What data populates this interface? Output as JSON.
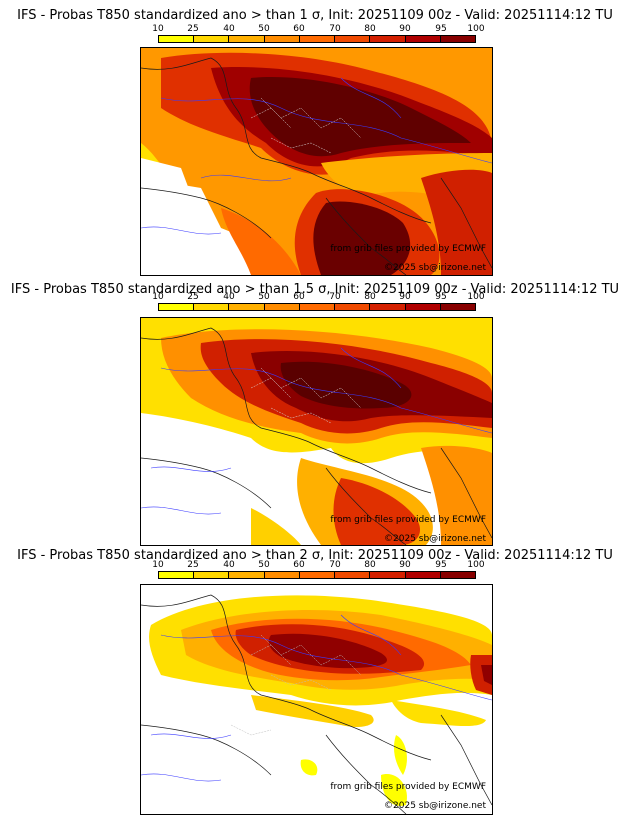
{
  "colorscale": {
    "ticks": [
      "10",
      "25",
      "40",
      "50",
      "60",
      "70",
      "80",
      "90",
      "95",
      "100"
    ],
    "colors": [
      "#ffff00",
      "#ffd800",
      "#ffb000",
      "#ff8c00",
      "#ff6a00",
      "#f04a00",
      "#d42000",
      "#b00000",
      "#880000",
      "#5a0000"
    ]
  },
  "panels": [
    {
      "title": "IFS - Probas T850  standardized ano > than 1 σ, Init: 20251109 00z - Valid: 20251114:12 TU",
      "credit_source": "from grib files provided by ECMWF",
      "credit_copyright": "©2025 sb@irizone.net"
    },
    {
      "title": "IFS - Probas T850  standardized ano > than 1.5 σ, Init: 20251109 00z - Valid: 20251114:12 TU",
      "credit_source": "from grib files provided by ECMWF",
      "credit_copyright": "©2025 sb@irizone.net"
    },
    {
      "title": "IFS - Probas T850  standardized ano > than 2 σ, Init: 20251109 00z - Valid: 20251114:12 TU",
      "credit_source": "from grib files provided by ECMWF",
      "credit_copyright": "©2025 sb@irizone.net"
    }
  ]
}
